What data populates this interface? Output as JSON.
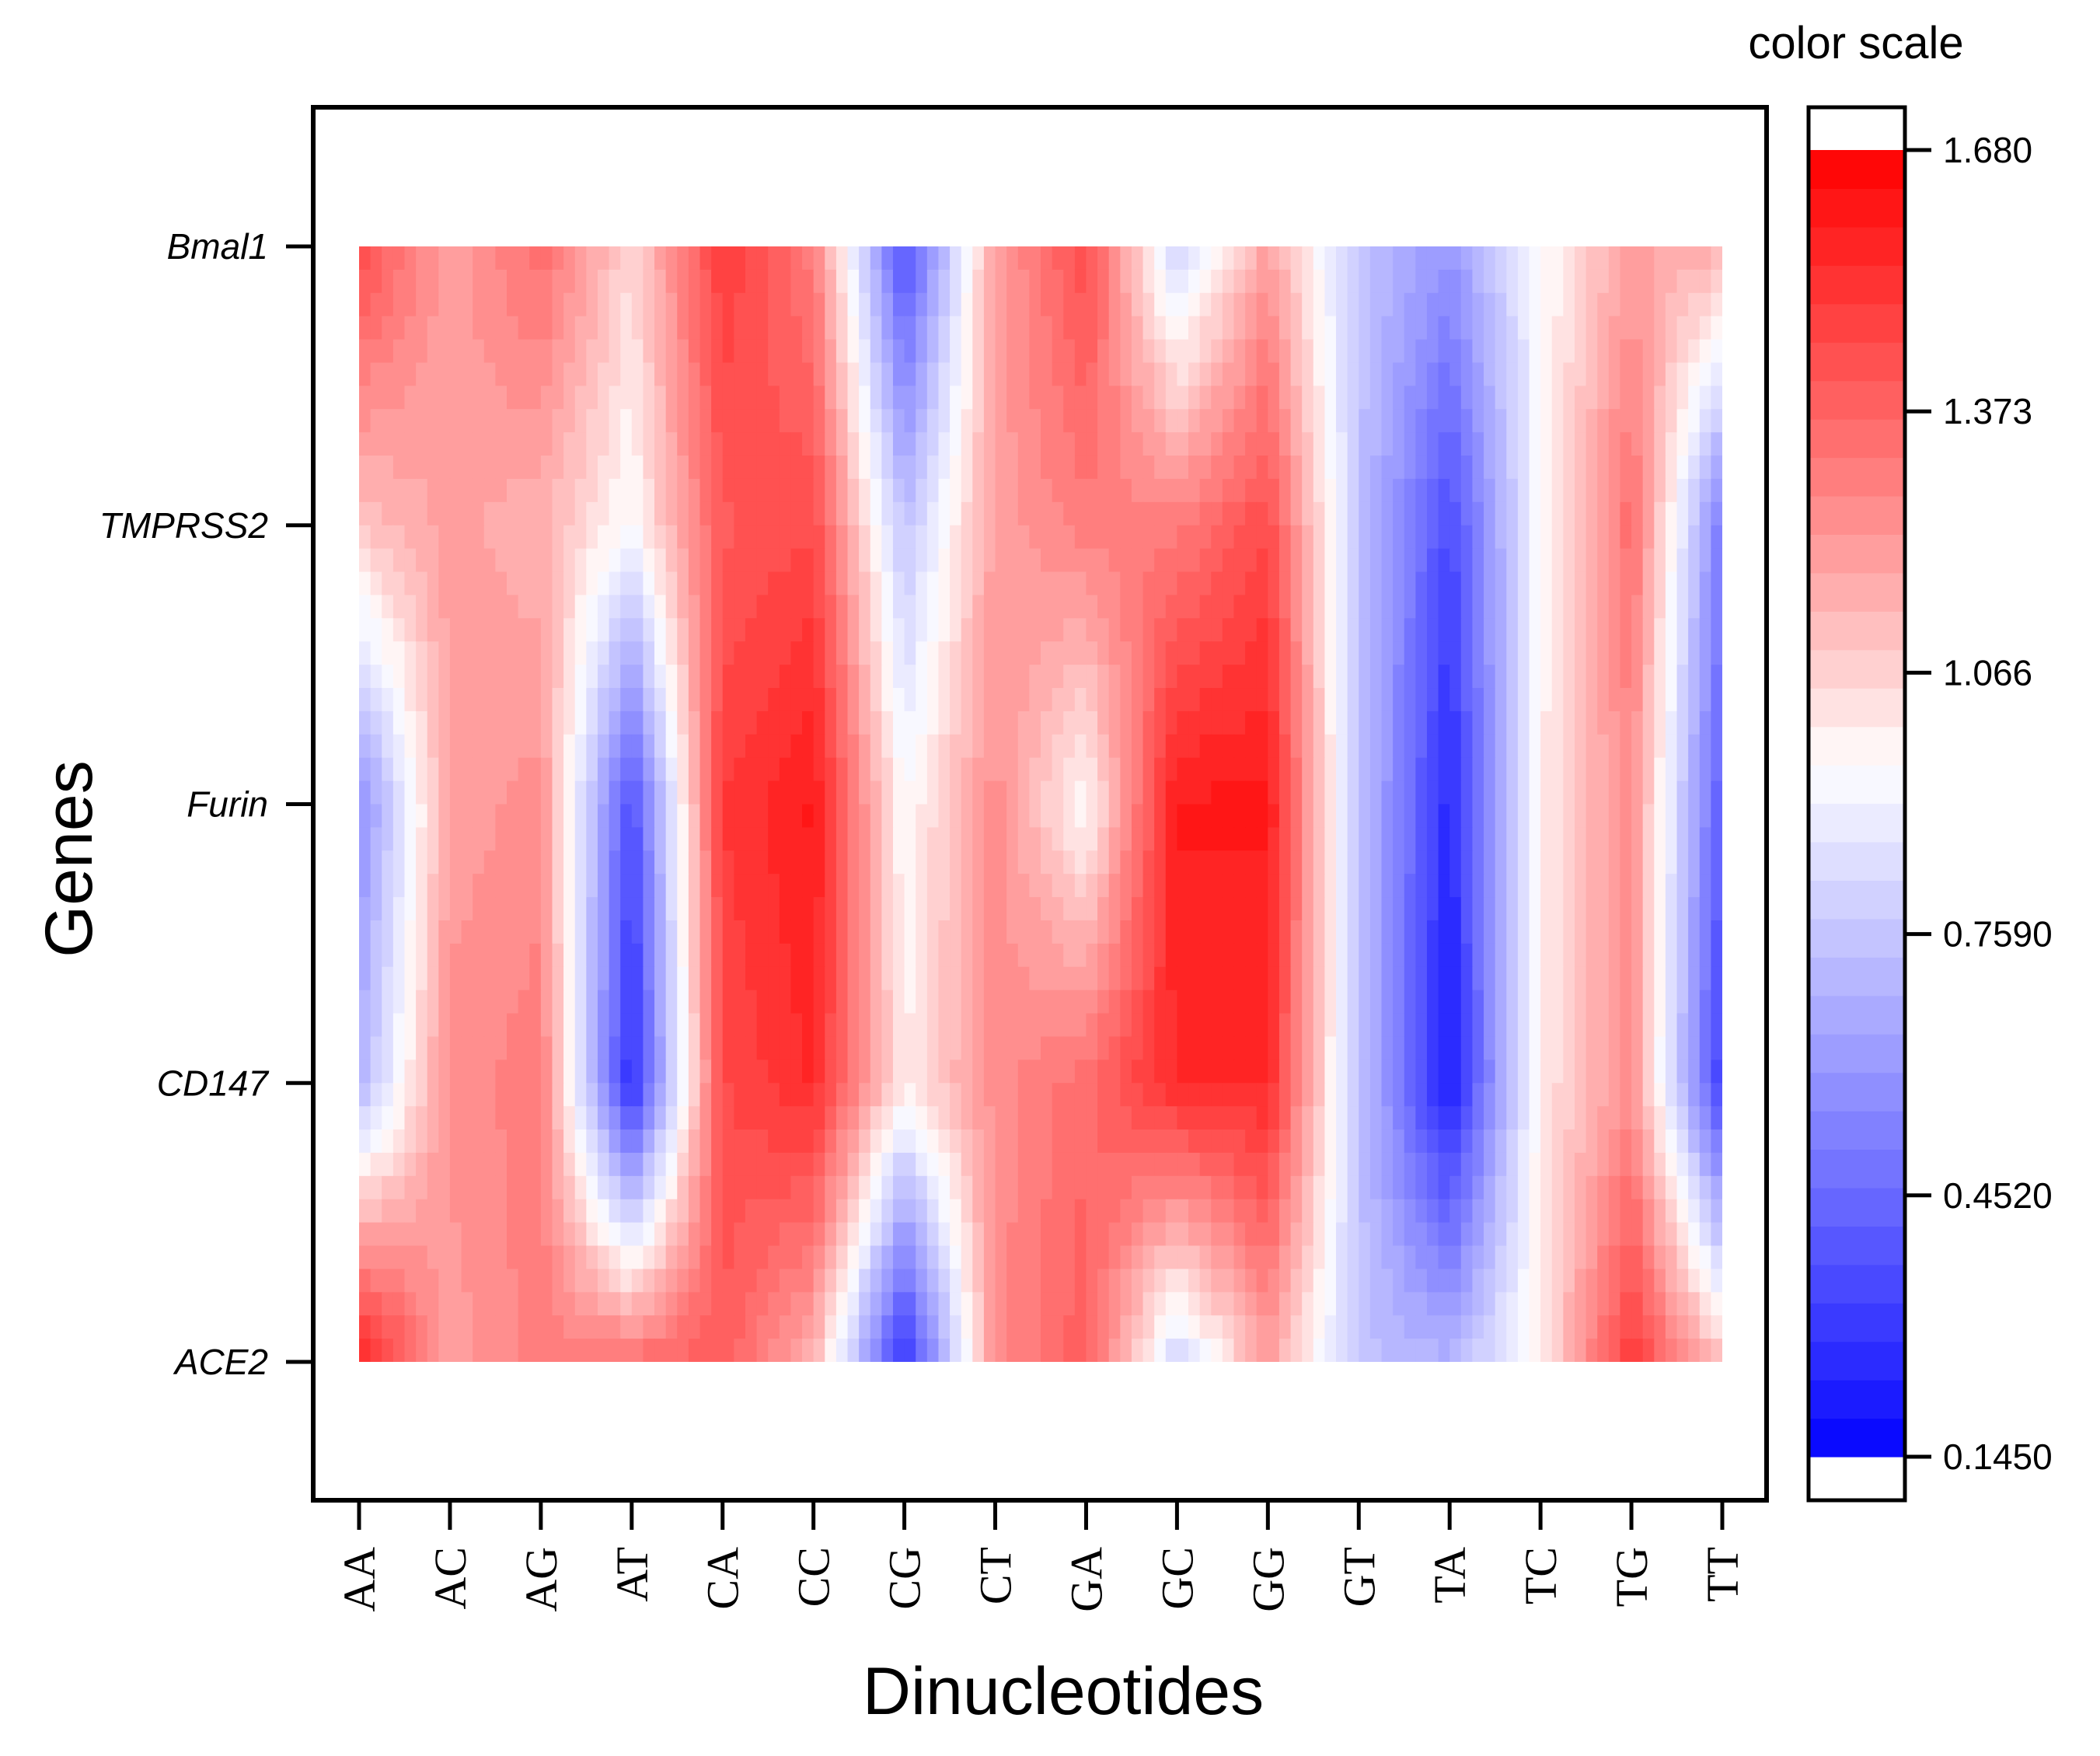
{
  "chart_data": {
    "type": "heatmap",
    "xlabel": "Dinucleotides",
    "ylabel": "Genes",
    "colorbar_title": "color scale",
    "x_categories": [
      "AA",
      "AC",
      "AG",
      "AT",
      "CA",
      "CC",
      "CG",
      "CT",
      "GA",
      "GC",
      "GG",
      "GT",
      "TA",
      "TC",
      "TG",
      "TT"
    ],
    "y_categories": [
      "Bmal1",
      "TMPRSS2",
      "Furin",
      "CD147",
      "ACE2"
    ],
    "values": [
      [
        1.45,
        1.2,
        1.35,
        1.05,
        1.5,
        1.3,
        0.35,
        1.2,
        1.45,
        0.8,
        1.2,
        0.75,
        0.6,
        0.95,
        1.2,
        1.15
      ],
      [
        1.1,
        1.2,
        1.15,
        0.95,
        1.4,
        1.45,
        0.75,
        1.2,
        1.3,
        1.3,
        1.45,
        0.75,
        0.35,
        0.95,
        1.35,
        0.5
      ],
      [
        0.55,
        1.2,
        1.25,
        0.35,
        1.5,
        1.6,
        0.95,
        1.25,
        0.95,
        1.6,
        1.6,
        0.75,
        0.25,
        1.0,
        1.25,
        0.4
      ],
      [
        0.7,
        1.25,
        1.3,
        0.25,
        1.45,
        1.55,
        1.0,
        1.25,
        1.35,
        1.55,
        1.55,
        0.75,
        0.2,
        1.0,
        1.25,
        0.3
      ],
      [
        1.6,
        1.2,
        1.3,
        1.35,
        1.4,
        1.15,
        0.25,
        1.25,
        1.4,
        0.8,
        1.2,
        0.75,
        0.7,
        1.0,
        1.5,
        1.1
      ]
    ],
    "colorbar_ticks": [
      "0.1450",
      "0.4520",
      "0.7590",
      "1.066",
      "1.373",
      "1.680"
    ],
    "colorbar_range": [
      0.145,
      1.68
    ],
    "colormap": {
      "low": "#0000ff",
      "mid": "#ffffff",
      "high": "#ff0000"
    },
    "grid": false
  }
}
